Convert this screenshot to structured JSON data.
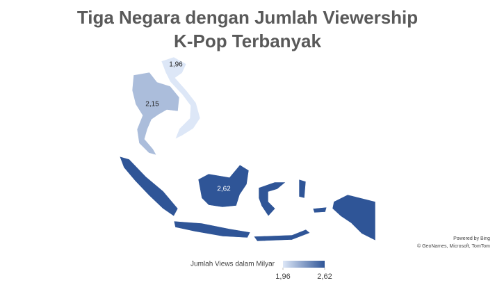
{
  "chart_data": {
    "type": "map",
    "title": "Tiga Negara dengan Jumlah Viewership K-Pop Terbanyak",
    "values": [
      1.96,
      2.15,
      2.62
    ],
    "value_labels": [
      "1,96",
      "2,15",
      "2,62"
    ],
    "color_scale": {
      "title": "Jumlah Views dalam Milyar",
      "colors": [
        "#dde7f7",
        "#2f5597"
      ],
      "clim": [
        1.96,
        2.62
      ],
      "ticks": [
        {
          "value": 1.96,
          "label": "1,96"
        },
        {
          "value": 2.62,
          "label": "2,62"
        }
      ]
    },
    "attribution": [
      "Powered by Bing",
      "© GeoNames, Microsoft, TomTom"
    ]
  }
}
